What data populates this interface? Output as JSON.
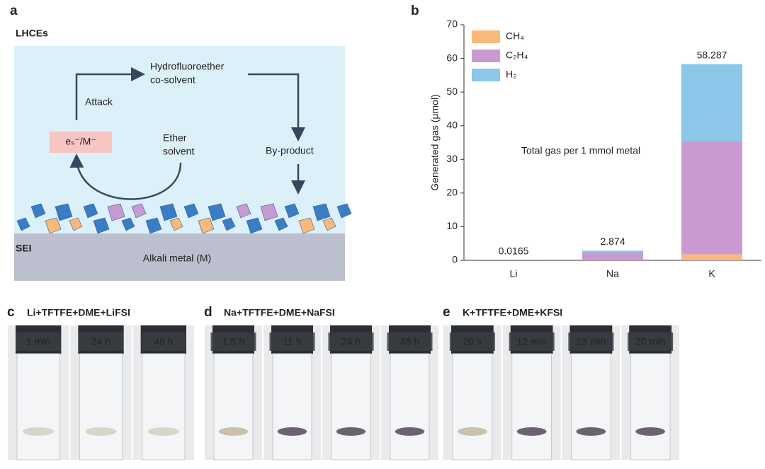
{
  "panel_a": {
    "letter": "a",
    "heading": "LHCEs",
    "cosolvent": [
      "Hydrofluoroether",
      "co-solvent"
    ],
    "attack": "Attack",
    "electron": "eₛ⁻/M⁻",
    "ether": [
      "Ether",
      "solvent"
    ],
    "byproduct": "By-product",
    "sei": "SEI",
    "metal": "Alkali metal (M)"
  },
  "chart_data": {
    "type": "stacked-bar",
    "letter": "b",
    "ylabel": "Generated gas (μmol)",
    "annotation": "Total gas per 1 mmol metal",
    "categories": [
      "Li",
      "Na",
      "K"
    ],
    "series": [
      {
        "name": "CH₄",
        "color": "#f9b97a",
        "values": [
          0.005,
          0.1,
          1.8
        ]
      },
      {
        "name": "C₂H₄",
        "color": "#c99ad0",
        "values": [
          0.0085,
          2.2,
          33.5
        ]
      },
      {
        "name": "H₂",
        "color": "#8cc6e8",
        "values": [
          0.003,
          0.574,
          22.987
        ]
      }
    ],
    "totals": [
      0.0165,
      2.874,
      58.287
    ],
    "ylim": [
      0,
      70
    ],
    "yticks": [
      0,
      10,
      20,
      30,
      40,
      50,
      60,
      70
    ],
    "legend": "upper-left"
  },
  "photo_panels": [
    {
      "letter": "c",
      "title": "Li+TFTFE+DME+LiFSI",
      "times": [
        "1 min",
        "24 h",
        "48 h"
      ]
    },
    {
      "letter": "d",
      "title": "Na+TFTFE+DME+NaFSI",
      "times": [
        "1.5 h",
        "11 h",
        "24 h",
        "48 h"
      ]
    },
    {
      "letter": "e",
      "title": "K+TFTFE+DME+KFSI",
      "times": [
        "20 s",
        "12 min",
        "13 min",
        "20 min"
      ]
    }
  ]
}
